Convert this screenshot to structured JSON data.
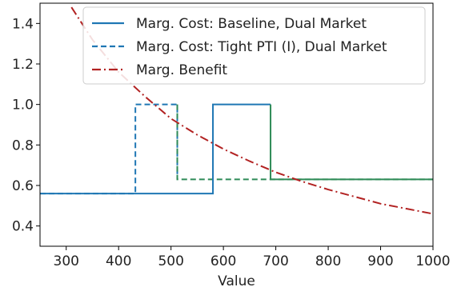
{
  "chart_data": {
    "type": "line",
    "title": "",
    "xlabel": "Value",
    "ylabel": "",
    "xlim": [
      250,
      1000
    ],
    "ylim": [
      0.3,
      1.5
    ],
    "xticks": [
      300,
      400,
      500,
      600,
      700,
      800,
      900,
      1000
    ],
    "yticks": [
      0.4,
      0.6,
      0.8,
      1.0,
      1.2,
      1.4
    ],
    "xtick_labels": [
      "300",
      "400",
      "500",
      "600",
      "700",
      "800",
      "900",
      "1000"
    ],
    "ytick_labels": [
      "0.4",
      "0.6",
      "0.8",
      "1.0",
      "1.2",
      "1.4"
    ],
    "grid": false,
    "legend_position": "top-right",
    "series": [
      {
        "name": "Marg. Cost: Baseline, Dual Market",
        "style": "solid",
        "color": "#1f77b4",
        "x": [
          250,
          580,
          580,
          690,
          690,
          1000
        ],
        "y": [
          0.56,
          0.56,
          1.0,
          1.0,
          0.63,
          0.63
        ]
      },
      {
        "name": "Marg. Cost: Tight PTI (I), Dual Market",
        "style": "dashed",
        "color": "#1f77b4",
        "x": [
          250,
          432,
          432,
          512,
          512,
          1000
        ],
        "y": [
          0.56,
          0.56,
          1.0,
          1.0,
          0.63,
          0.63
        ]
      },
      {
        "name": "Marg. Benefit",
        "style": "dashdot",
        "color": "#b22222",
        "x": [
          310,
          350,
          400,
          450,
          500,
          550,
          600,
          650,
          700,
          750,
          800,
          850,
          900,
          950,
          1000
        ],
        "y": [
          1.48,
          1.32,
          1.16,
          1.04,
          0.93,
          0.85,
          0.78,
          0.72,
          0.665,
          0.62,
          0.58,
          0.545,
          0.51,
          0.485,
          0.46
        ]
      }
    ]
  },
  "colors": {
    "baseline": "#1f77b4",
    "tight_pti": "#1f77b4",
    "tight_pti_tail": "#2e8b57",
    "baseline_tail": "#2e8b57",
    "benefit": "#b22222"
  }
}
